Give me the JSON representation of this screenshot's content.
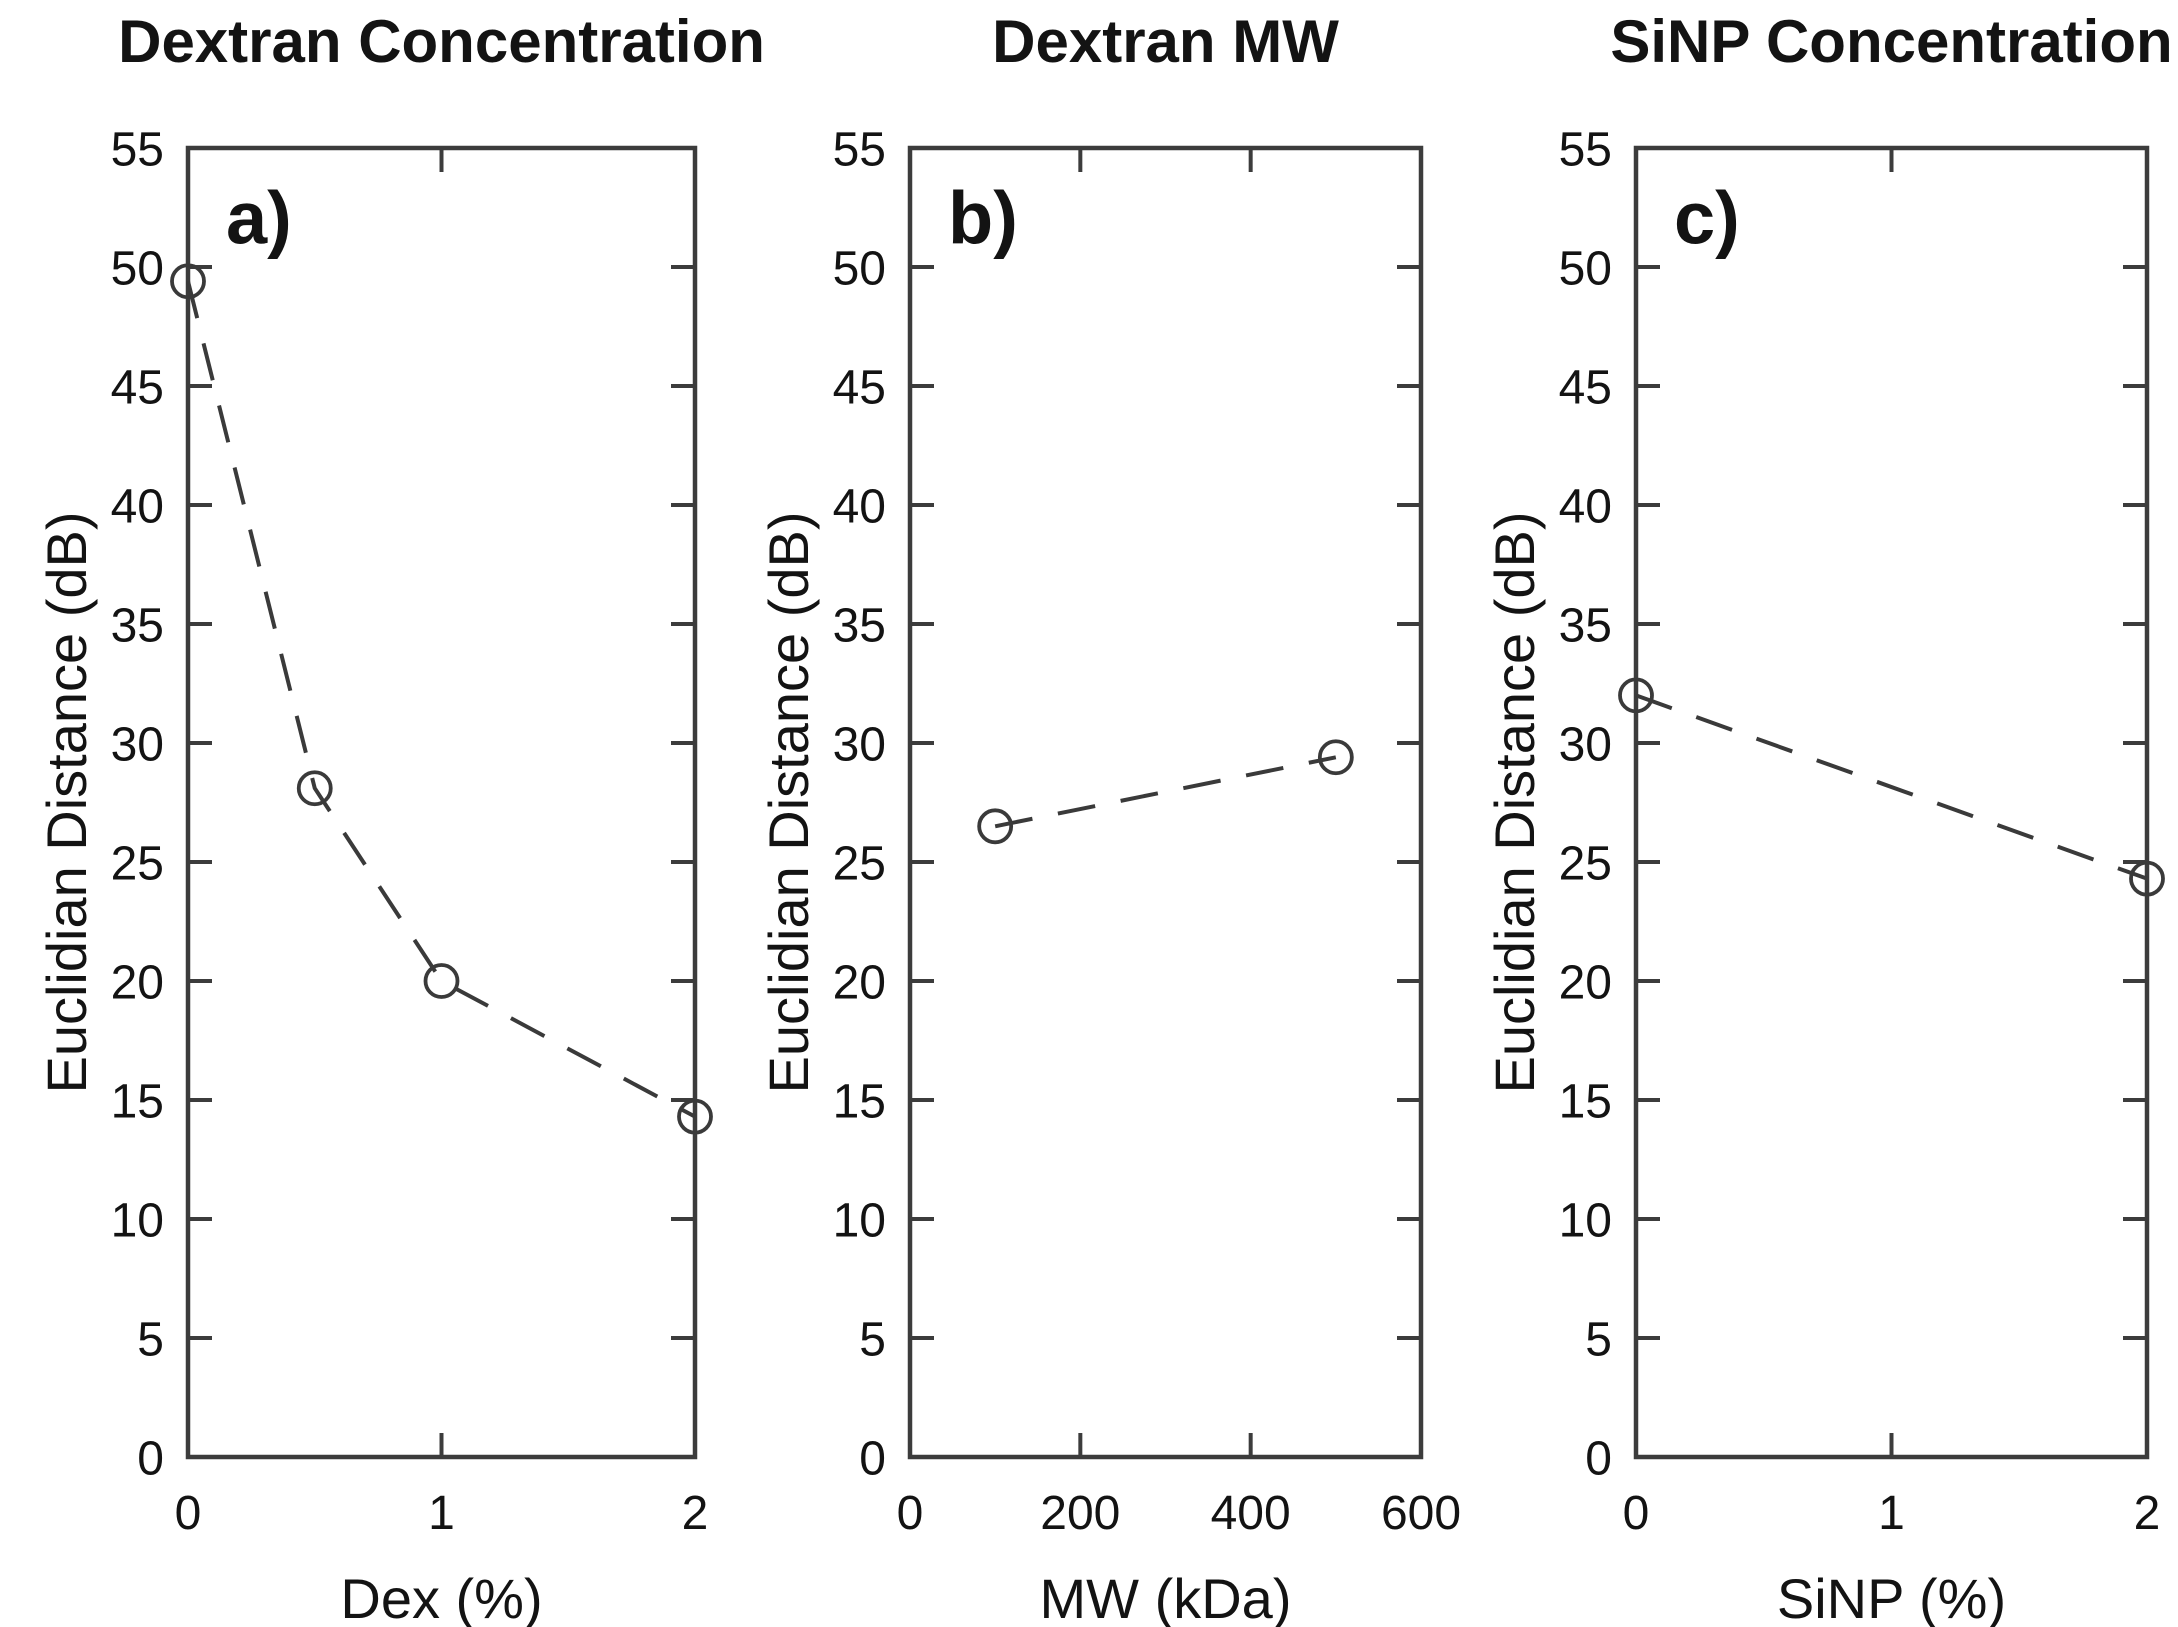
{
  "figure": {
    "background": "#ffffff",
    "text_color": "#131313",
    "axis_color": "#3c3c3c",
    "line_color": "#3a3a3a",
    "ylabel": "Euclidian Distance (dB)",
    "ylim": [
      0,
      55
    ],
    "y_ticks": [
      0,
      5,
      10,
      15,
      20,
      25,
      30,
      35,
      40,
      45,
      50,
      55
    ],
    "grid": false,
    "legend": "none",
    "marker": "open-circle",
    "line_style": "dashed"
  },
  "chart_data": [
    {
      "type": "line",
      "title": "Dextran Concentration",
      "panel_label": "a)",
      "xlabel": "Dex (%)",
      "ylabel": "Euclidian Distance (dB)",
      "xlim": [
        0,
        2
      ],
      "ylim": [
        0,
        55
      ],
      "x_ticks": [
        0,
        1,
        2
      ],
      "x": [
        0,
        0.5,
        1,
        2
      ],
      "y": [
        49.4,
        28.1,
        20.0,
        14.3
      ]
    },
    {
      "type": "line",
      "title": "Dextran MW",
      "panel_label": "b)",
      "xlabel": "MW (kDa)",
      "ylabel": "Euclidian Distance (dB)",
      "xlim": [
        0,
        600
      ],
      "ylim": [
        0,
        55
      ],
      "x_ticks": [
        0,
        200,
        400,
        600
      ],
      "x": [
        100,
        500
      ],
      "y": [
        26.5,
        29.4
      ]
    },
    {
      "type": "line",
      "title": "SiNP Concentration",
      "panel_label": "c)",
      "xlabel": "SiNP (%)",
      "ylabel": "Euclidian Distance (dB)",
      "xlim": [
        0,
        2
      ],
      "ylim": [
        0,
        55
      ],
      "x_ticks": [
        0,
        1,
        2
      ],
      "x": [
        0,
        2
      ],
      "y": [
        32.0,
        24.3
      ]
    }
  ]
}
